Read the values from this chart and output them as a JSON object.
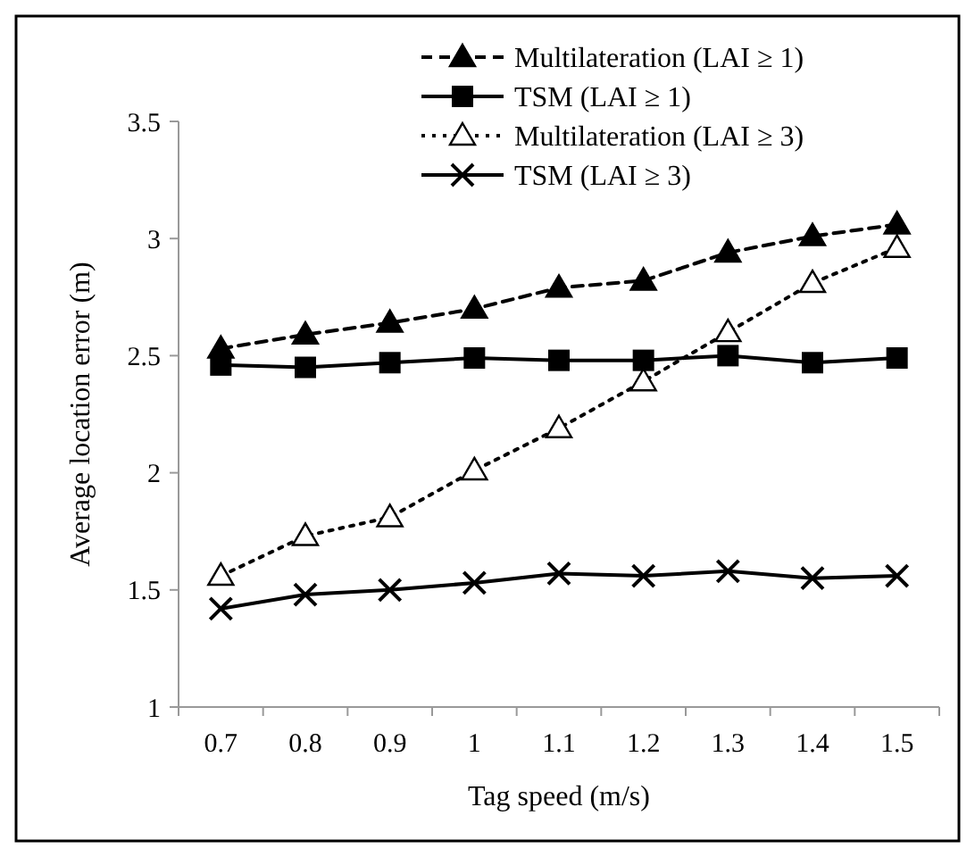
{
  "chart_data": {
    "type": "line",
    "xlabel": "Tag speed (m/s)",
    "ylabel": "Average location error (m)",
    "categories": [
      "0.7",
      "0.8",
      "0.9",
      "1",
      "1.1",
      "1.2",
      "1.3",
      "1.4",
      "1.5"
    ],
    "ylim": [
      1,
      3.5
    ],
    "yticks": [
      1,
      1.5,
      2,
      2.5,
      3,
      3.5
    ],
    "grid": false,
    "legend": "top right",
    "series": [
      {
        "name": "Multilateration (LAI ≥ 1)",
        "color": "#000000",
        "marker": "triangle",
        "line_style": "dashed",
        "values": [
          2.53,
          2.59,
          2.64,
          2.7,
          2.79,
          2.82,
          2.94,
          3.01,
          3.06
        ]
      },
      {
        "name": "TSM (LAI ≥ 1)",
        "color": "#000000",
        "marker": "square",
        "line_style": "solid",
        "values": [
          2.46,
          2.45,
          2.47,
          2.49,
          2.48,
          2.48,
          2.5,
          2.47,
          2.49
        ]
      },
      {
        "name": "Multilateration (LAI ≥ 3)",
        "color": "#000000",
        "marker": "triangle",
        "line_style": "dotted",
        "values": [
          1.56,
          1.73,
          1.81,
          2.01,
          2.19,
          2.39,
          2.6,
          2.81,
          2.96
        ]
      },
      {
        "name": "TSM (LAI ≥ 3)",
        "color": "#000000",
        "marker": "cross",
        "line_style": "solid",
        "values": [
          1.42,
          1.48,
          1.5,
          1.53,
          1.57,
          1.56,
          1.58,
          1.55,
          1.56
        ]
      }
    ]
  }
}
